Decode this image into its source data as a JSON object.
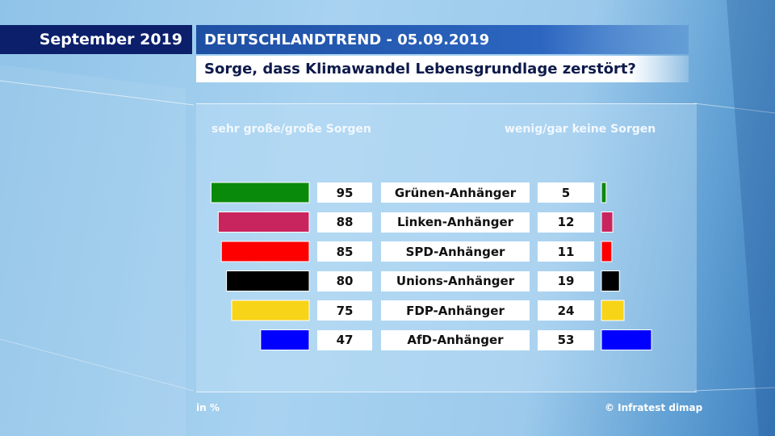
{
  "header": {
    "month": "September 2019",
    "trend": "DEUTSCHLANDTREND - 05.09.2019",
    "question": "Sorge, dass Klimawandel Lebensgrundlage zerstört?"
  },
  "columns": {
    "left": "sehr große/große Sorgen",
    "right": "wenig/gar keine Sorgen"
  },
  "footer": {
    "unit": "in %",
    "source": "© Infratest dimap"
  },
  "chart_data": {
    "type": "bar",
    "categories": [
      "Grünen-Anhänger",
      "Linken-Anhänger",
      "SPD-Anhänger",
      "Unions-Anhänger",
      "FDP-Anhänger",
      "AfD-Anhänger"
    ],
    "series": [
      {
        "name": "sehr große/große Sorgen",
        "values": [
          95,
          88,
          85,
          80,
          75,
          47
        ]
      },
      {
        "name": "wenig/gar keine Sorgen",
        "values": [
          5,
          12,
          11,
          19,
          24,
          53
        ]
      }
    ],
    "colors": [
      "#0a8a0a",
      "#c8255f",
      "#ff0000",
      "#000000",
      "#f7d417",
      "#0000ff"
    ],
    "unit": "in %"
  }
}
